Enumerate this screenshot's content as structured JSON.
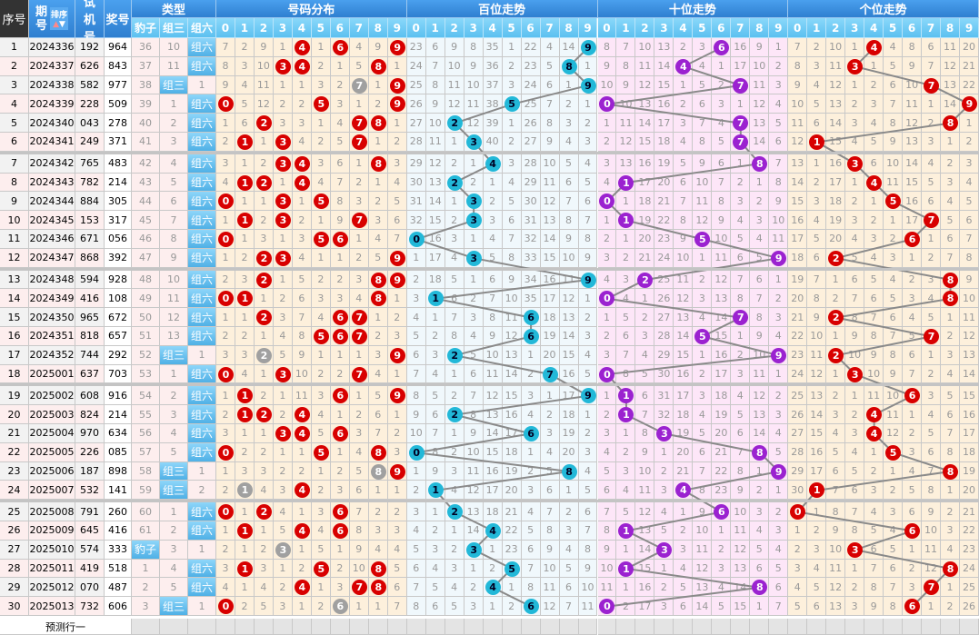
{
  "header": {
    "seq": "序号",
    "period": "期号",
    "sort": "排序",
    "trial": "试机号",
    "prize": "奖号",
    "type": "类型",
    "type_sub": [
      "豹子",
      "组三",
      "组六"
    ],
    "dist": "号码分布",
    "hundreds": "百位走势",
    "tens": "十位走势",
    "units": "个位走势",
    "digits": [
      "0",
      "1",
      "2",
      "3",
      "4",
      "5",
      "6",
      "7",
      "8",
      "9"
    ]
  },
  "rows": [
    [
      "1",
      "2024336",
      "192",
      "964"
    ],
    [
      "2",
      "2024337",
      "626",
      "843"
    ],
    [
      "3",
      "2024338",
      "582",
      "977"
    ],
    [
      "4",
      "2024339",
      "228",
      "509"
    ],
    [
      "5",
      "2024340",
      "043",
      "278"
    ],
    [
      "6",
      "2024341",
      "249",
      "371"
    ],
    [
      "7",
      "2024342",
      "765",
      "483"
    ],
    [
      "8",
      "2024343",
      "782",
      "214"
    ],
    [
      "9",
      "2024344",
      "884",
      "305"
    ],
    [
      "10",
      "2024345",
      "153",
      "317"
    ],
    [
      "11",
      "2024346",
      "671",
      "056"
    ],
    [
      "12",
      "2024347",
      "868",
      "392"
    ],
    [
      "13",
      "2024348",
      "594",
      "928"
    ],
    [
      "14",
      "2024349",
      "416",
      "108"
    ],
    [
      "15",
      "2024350",
      "965",
      "672"
    ],
    [
      "16",
      "2024351",
      "818",
      "657"
    ],
    [
      "17",
      "2024352",
      "744",
      "292"
    ],
    [
      "18",
      "2025001",
      "637",
      "703"
    ],
    [
      "19",
      "2025002",
      "608",
      "916"
    ],
    [
      "20",
      "2025003",
      "824",
      "214"
    ],
    [
      "21",
      "2025004",
      "970",
      "634"
    ],
    [
      "22",
      "2025005",
      "226",
      "085"
    ],
    [
      "23",
      "2025006",
      "187",
      "898"
    ],
    [
      "24",
      "2025007",
      "532",
      "141"
    ],
    [
      "25",
      "2025008",
      "791",
      "260"
    ],
    [
      "26",
      "2025009",
      "645",
      "416"
    ],
    [
      "27",
      "2025010",
      "574",
      "333"
    ],
    [
      "28",
      "2025011",
      "419",
      "518"
    ],
    [
      "29",
      "2025012",
      "070",
      "487"
    ],
    [
      "30",
      "2025013",
      "732",
      "606"
    ]
  ],
  "first_row_missing": {
    "type": [
      36,
      10,
      0
    ],
    "dist": [
      7,
      2,
      9,
      1,
      0,
      1,
      0,
      4,
      9,
      0
    ],
    "hundreds": [
      23,
      6,
      9,
      8,
      35,
      1,
      22,
      4,
      14,
      0
    ],
    "tens": [
      8,
      7,
      10,
      13,
      2,
      3,
      0,
      16,
      9,
      1
    ],
    "units": [
      7,
      2,
      10,
      1,
      0,
      4,
      8,
      6,
      11,
      20
    ]
  },
  "predict_label": "预测行一",
  "colors": {
    "dist_ball": "#d80000",
    "repeat_ball": "#a0a0a0",
    "hundreds_ball": "#22b8d8",
    "tens_ball": "#9b22d0",
    "units_ball": "#d80000",
    "trend_line": "#8a8a8a",
    "dist_bg": "#fdf0dc",
    "hundreds_bg": "#f0f8fc",
    "tens_bg": "#fde6f8",
    "units_bg": "#fdf0dc"
  }
}
